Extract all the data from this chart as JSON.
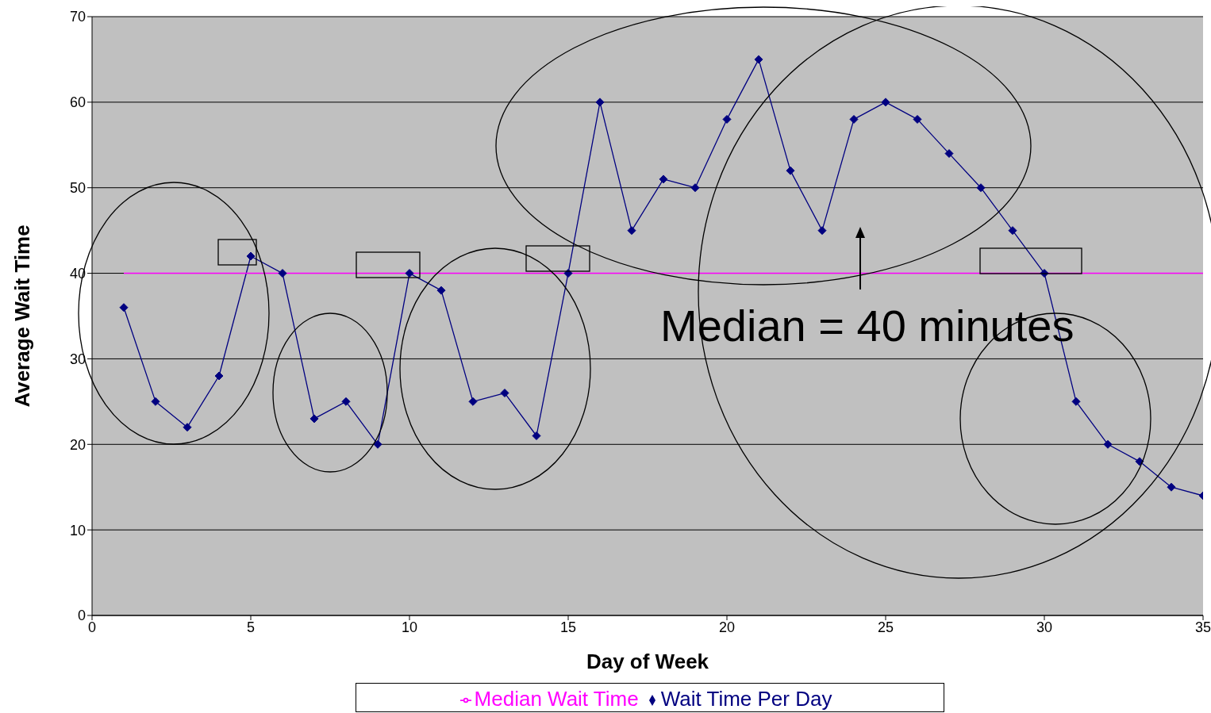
{
  "chart_data": {
    "type": "line",
    "xlabel": "Day of Week",
    "ylabel": "Average Wait Time",
    "x": [
      1,
      2,
      3,
      4,
      5,
      6,
      7,
      8,
      9,
      10,
      11,
      12,
      13,
      14,
      15,
      16,
      17,
      18,
      19,
      20,
      21,
      22,
      23,
      24,
      25,
      26,
      27,
      28,
      29,
      30,
      31,
      32,
      33,
      34,
      35
    ],
    "series": [
      {
        "name": "Wait Time Per Day",
        "color": "#000080",
        "marker": "diamond",
        "values": [
          36,
          25,
          22,
          28,
          42,
          40,
          23,
          25,
          20,
          40,
          38,
          25,
          26,
          21,
          40,
          60,
          45,
          51,
          50,
          58,
          65,
          52,
          45,
          58,
          60,
          58,
          54,
          50,
          45,
          40,
          25,
          20,
          18,
          15,
          14
        ]
      },
      {
        "name": "Median Wait Time",
        "color": "#ff00ff",
        "marker": "none",
        "x": [
          1,
          35
        ],
        "values": [
          40,
          40
        ]
      }
    ],
    "xlim": [
      0,
      35
    ],
    "xticks": [
      0,
      5,
      10,
      15,
      20,
      25,
      30,
      35
    ],
    "ylim": [
      0,
      70
    ],
    "yticks": [
      0,
      10,
      20,
      30,
      40,
      50,
      60,
      70
    ],
    "grid": "y",
    "legend": "bottom",
    "line_style": "solid",
    "annotations": [
      "Median = 40 minutes"
    ]
  }
}
